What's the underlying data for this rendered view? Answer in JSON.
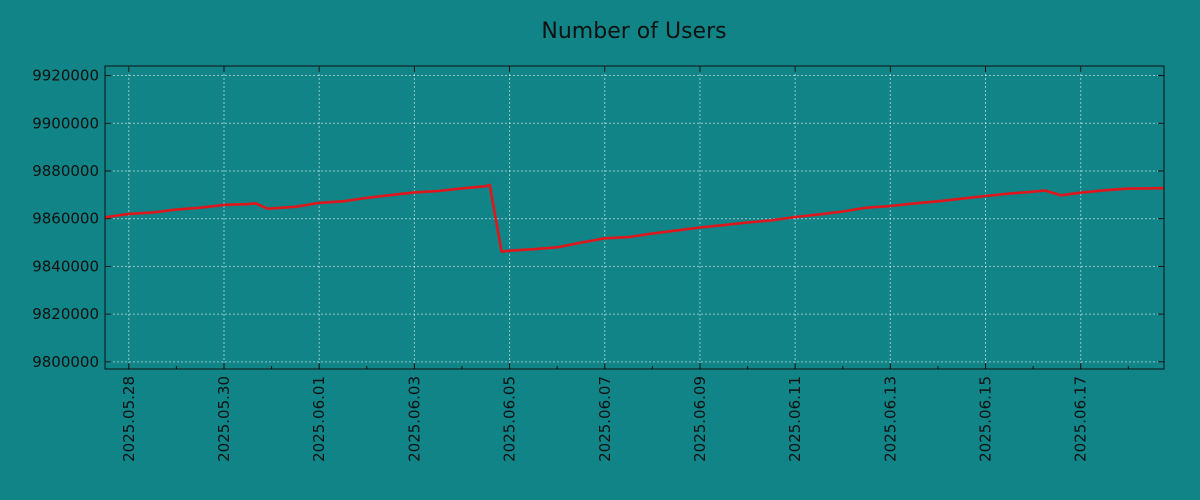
{
  "colors": {
    "background": "#108487",
    "line": "#e0161b",
    "text": "#111111"
  },
  "chart_data": {
    "type": "line",
    "title": "Number of Users",
    "xlabel": "",
    "ylabel": "",
    "xlim": [
      "2025.05.27 12:00",
      "2025.06.18 18:00"
    ],
    "ylim": [
      9797000,
      9924000
    ],
    "grid": true,
    "y_ticks": [
      "9800000",
      "9820000",
      "9840000",
      "9860000",
      "9880000",
      "9900000",
      "9920000"
    ],
    "x_ticks": [
      "2025.05.28",
      "2025.05.30",
      "2025.06.01",
      "2025.06.03",
      "2025.06.05",
      "2025.06.07",
      "2025.06.09",
      "2025.06.11",
      "2025.06.13",
      "2025.06.15",
      "2025.06.17"
    ],
    "series": [
      {
        "color": "#e0161b",
        "x": [
          "2025.05.27 12:00",
          "2025.05.28 00:00",
          "2025.05.28 12:00",
          "2025.05.29 00:00",
          "2025.05.29 12:00",
          "2025.05.30 00:00",
          "2025.05.30 12:00",
          "2025.05.30 16:00",
          "2025.05.30 22:00",
          "2025.05.31 12:00",
          "2025.06.01 00:00",
          "2025.06.01 12:00",
          "2025.06.02 00:00",
          "2025.06.02 12:00",
          "2025.06.03 00:00",
          "2025.06.03 12:00",
          "2025.06.04 00:00",
          "2025.06.04 12:00",
          "2025.06.04 14:00",
          "2025.06.04 20:00",
          "2025.06.05 00:00",
          "2025.06.05 12:00",
          "2025.06.06 00:00",
          "2025.06.06 12:00",
          "2025.06.07 00:00",
          "2025.06.07 12:00",
          "2025.06.08 00:00",
          "2025.06.08 12:00",
          "2025.06.09 00:00",
          "2025.06.09 12:00",
          "2025.06.10 00:00",
          "2025.06.10 12:00",
          "2025.06.11 00:00",
          "2025.06.11 12:00",
          "2025.06.12 00:00",
          "2025.06.12 12:00",
          "2025.06.13 00:00",
          "2025.06.13 12:00",
          "2025.06.14 00:00",
          "2025.06.14 12:00",
          "2025.06.15 00:00",
          "2025.06.15 12:00",
          "2025.06.16 00:00",
          "2025.06.16 06:00",
          "2025.06.16 14:00",
          "2025.06.17 00:00",
          "2025.06.17 12:00",
          "2025.06.18 00:00",
          "2025.06.18 18:00"
        ],
        "y": [
          9860600,
          9862000,
          9862600,
          9863800,
          9864600,
          9865800,
          9866100,
          9866400,
          9864200,
          9865000,
          9866600,
          9867300,
          9868700,
          9869900,
          9871000,
          9871600,
          9872700,
          9873600,
          9874200,
          9846200,
          9846600,
          9847200,
          9848000,
          9850000,
          9851800,
          9852300,
          9853800,
          9855000,
          9856300,
          9857300,
          9858400,
          9859300,
          9860700,
          9861800,
          9863000,
          9864600,
          9865300,
          9866400,
          9867300,
          9868400,
          9869500,
          9870500,
          9871300,
          9871800,
          9869800,
          9870900,
          9871900,
          9872600,
          9872800
        ]
      }
    ]
  }
}
